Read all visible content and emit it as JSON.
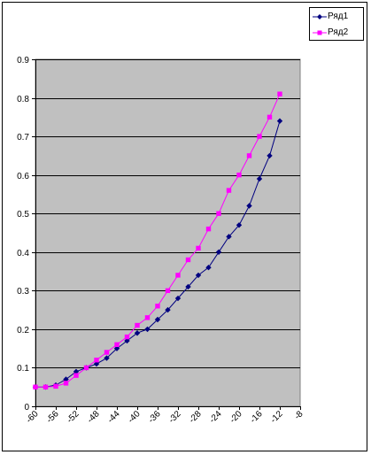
{
  "chart_data": {
    "type": "line",
    "title": "",
    "xlabel": "",
    "ylabel": "",
    "ylim": [
      0,
      0.9
    ],
    "xlim": [
      -60,
      -8
    ],
    "x_ticks": [
      "-60",
      "-56",
      "-52",
      "-48",
      "-44",
      "-40",
      "-36",
      "-32",
      "-28",
      "-24",
      "-20",
      "-16",
      "-12",
      "-8"
    ],
    "y_ticks": [
      "0",
      "0.1",
      "0.2",
      "0.3",
      "0.4",
      "0.5",
      "0.6",
      "0.7",
      "0.8",
      "0.9"
    ],
    "grid": "horizontal",
    "plot_background": "#c0c0c0",
    "legend_position": "top-right",
    "series": [
      {
        "name": "Ряд1",
        "color": "#000080",
        "marker": "diamond",
        "x": [
          -60,
          -58,
          -56,
          -54,
          -52,
          -50,
          -48,
          -46,
          -44,
          -42,
          -40,
          -38,
          -36,
          -34,
          -32,
          -30,
          -28,
          -26,
          -24,
          -22,
          -20,
          -18,
          -16,
          -14,
          -12
        ],
        "values": [
          0.05,
          0.05,
          0.055,
          0.07,
          0.09,
          0.1,
          0.11,
          0.125,
          0.15,
          0.17,
          0.19,
          0.2,
          0.225,
          0.25,
          0.28,
          0.31,
          0.34,
          0.36,
          0.4,
          0.44,
          0.47,
          0.52,
          0.59,
          0.65,
          0.74
        ]
      },
      {
        "name": "Ряд2",
        "color": "#ff00ff",
        "marker": "square",
        "x": [
          -60,
          -58,
          -56,
          -54,
          -52,
          -50,
          -48,
          -46,
          -44,
          -42,
          -40,
          -38,
          -36,
          -34,
          -32,
          -30,
          -28,
          -26,
          -24,
          -22,
          -20,
          -18,
          -16,
          -14,
          -12
        ],
        "values": [
          0.05,
          0.05,
          0.052,
          0.06,
          0.08,
          0.1,
          0.12,
          0.14,
          0.16,
          0.18,
          0.21,
          0.23,
          0.26,
          0.3,
          0.34,
          0.38,
          0.41,
          0.46,
          0.5,
          0.56,
          0.6,
          0.65,
          0.7,
          0.75,
          0.81
        ]
      }
    ]
  }
}
